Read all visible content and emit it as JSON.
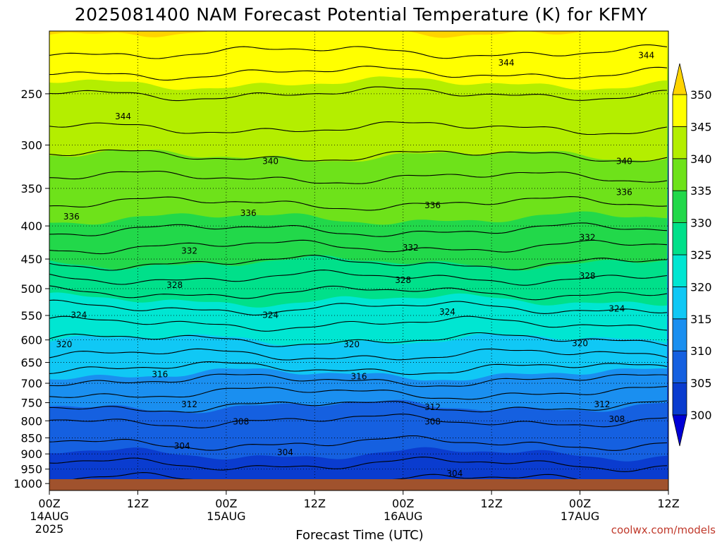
{
  "chart_data": {
    "type": "heatmap",
    "title": "2025081400 NAM Forecast Potential Temperature (K) for KFMY",
    "xlabel": "Forecast Time (UTC)",
    "credit": "coolwx.com/models",
    "x_ticks": [
      {
        "hour": 0,
        "line1": "00Z",
        "line2": "14AUG",
        "line3": "2025"
      },
      {
        "hour": 12,
        "line1": "12Z",
        "line2": "",
        "line3": ""
      },
      {
        "hour": 24,
        "line1": "00Z",
        "line2": "15AUG",
        "line3": ""
      },
      {
        "hour": 36,
        "line1": "12Z",
        "line2": "",
        "line3": ""
      },
      {
        "hour": 48,
        "line1": "00Z",
        "line2": "16AUG",
        "line3": ""
      },
      {
        "hour": 60,
        "line1": "12Z",
        "line2": "",
        "line3": ""
      },
      {
        "hour": 72,
        "line1": "00Z",
        "line2": "17AUG",
        "line3": ""
      },
      {
        "hour": 84,
        "line1": "12Z",
        "line2": "",
        "line3": ""
      }
    ],
    "xlim": [
      0,
      84
    ],
    "y_ticks": [
      250,
      300,
      350,
      400,
      450,
      500,
      550,
      600,
      650,
      700,
      750,
      800,
      850,
      900,
      950,
      1000
    ],
    "y_tick_labels": [
      "250",
      "300",
      "350",
      "400",
      "450",
      "500",
      "550",
      "600",
      "650",
      "700",
      "750",
      "800",
      "850",
      "900",
      "950",
      "1000"
    ],
    "ylim": [
      200,
      1025
    ],
    "yscale": "log",
    "grid": true,
    "colorbar": {
      "levels": [
        300,
        305,
        310,
        315,
        320,
        325,
        330,
        335,
        340,
        345,
        350
      ],
      "labels": [
        "300",
        "305",
        "310",
        "315",
        "320",
        "325",
        "330",
        "335",
        "340",
        "345",
        "350"
      ],
      "colors": [
        "#0000d6",
        "#0a3ccf",
        "#1560e0",
        "#1a8ff0",
        "#10c8f5",
        "#00e6d2",
        "#00e08a",
        "#22d84a",
        "#6ee21a",
        "#b4ee00",
        "#ffff00",
        "#ffd400"
      ],
      "extend": "both"
    },
    "levels": [
      1000,
      950,
      900,
      850,
      800,
      750,
      700,
      650,
      600,
      550,
      500,
      450,
      400,
      350,
      300,
      250,
      200
    ],
    "theta_profile": [
      301.5,
      303.5,
      305,
      306.5,
      308,
      310.5,
      313.5,
      317,
      320,
      323,
      326.5,
      330.5,
      334.5,
      337,
      341,
      344,
      350
    ],
    "contour_levels": [
      304,
      308,
      312,
      316,
      320,
      324,
      328,
      332,
      336,
      340,
      344
    ],
    "contour_labels": [
      {
        "text": "344",
        "hour": 10,
        "p": 271
      },
      {
        "text": "344",
        "hour": 62,
        "p": 224
      },
      {
        "text": "344",
        "hour": 81,
        "p": 218
      },
      {
        "text": "340",
        "hour": 30,
        "p": 318
      },
      {
        "text": "340",
        "hour": 78,
        "p": 318
      },
      {
        "text": "336",
        "hour": 3,
        "p": 387
      },
      {
        "text": "336",
        "hour": 27,
        "p": 382
      },
      {
        "text": "336",
        "hour": 52,
        "p": 372
      },
      {
        "text": "336",
        "hour": 78,
        "p": 355
      },
      {
        "text": "332",
        "hour": 19,
        "p": 437
      },
      {
        "text": "332",
        "hour": 49,
        "p": 432
      },
      {
        "text": "332",
        "hour": 73,
        "p": 417
      },
      {
        "text": "328",
        "hour": 17,
        "p": 494
      },
      {
        "text": "328",
        "hour": 48,
        "p": 485
      },
      {
        "text": "328",
        "hour": 73,
        "p": 478
      },
      {
        "text": "324",
        "hour": 4,
        "p": 549
      },
      {
        "text": "324",
        "hour": 30,
        "p": 549
      },
      {
        "text": "324",
        "hour": 54,
        "p": 543
      },
      {
        "text": "324",
        "hour": 77,
        "p": 537
      },
      {
        "text": "320",
        "hour": 2,
        "p": 610
      },
      {
        "text": "320",
        "hour": 41,
        "p": 610
      },
      {
        "text": "320",
        "hour": 72,
        "p": 607
      },
      {
        "text": "316",
        "hour": 15,
        "p": 678
      },
      {
        "text": "316",
        "hour": 42,
        "p": 683
      },
      {
        "text": "312",
        "hour": 19,
        "p": 755
      },
      {
        "text": "312",
        "hour": 52,
        "p": 762
      },
      {
        "text": "312",
        "hour": 75,
        "p": 755
      },
      {
        "text": "308",
        "hour": 26,
        "p": 802
      },
      {
        "text": "308",
        "hour": 52,
        "p": 802
      },
      {
        "text": "308",
        "hour": 77,
        "p": 795
      },
      {
        "text": "304",
        "hour": 18,
        "p": 875
      },
      {
        "text": "304",
        "hour": 32,
        "p": 895
      },
      {
        "text": "304",
        "hour": 55,
        "p": 965
      }
    ],
    "ground": {
      "color": "#a0522d"
    }
  }
}
